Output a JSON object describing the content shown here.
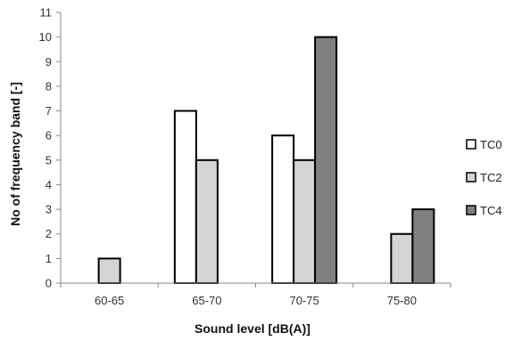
{
  "chart_data": {
    "type": "bar",
    "title": "",
    "xlabel": "Sound level [dB(A)]",
    "ylabel": "No of frequency band [-]",
    "categories": [
      "60-65",
      "65-70",
      "70-75",
      "75-80"
    ],
    "ylim": [
      0,
      11
    ],
    "yticks": [
      0,
      1,
      2,
      3,
      4,
      5,
      6,
      7,
      8,
      9,
      10,
      11
    ],
    "grid": false,
    "legend": "right",
    "series": [
      {
        "name": "TC0",
        "values": [
          0,
          7,
          6,
          0
        ],
        "color": "#ffffff"
      },
      {
        "name": "TC2",
        "values": [
          1,
          5,
          5,
          2
        ],
        "color": "#d4d4d4"
      },
      {
        "name": "TC4",
        "values": [
          0,
          0,
          10,
          3
        ],
        "color": "#808080"
      }
    ]
  }
}
